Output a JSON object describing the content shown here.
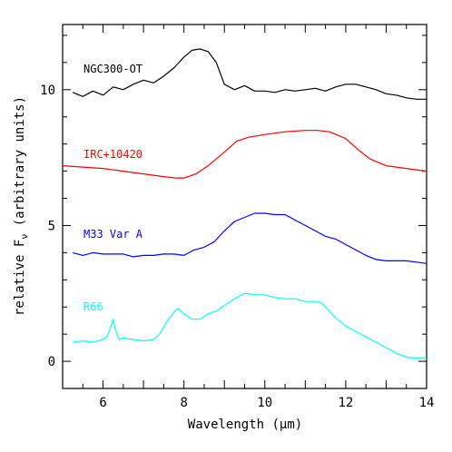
{
  "chart_data": {
    "type": "line",
    "title": "",
    "xlabel": "Wavelength (μm)",
    "ylabel": "relative F",
    "ylabel_sub": "ν",
    "ylabel_suffix": " (arbitrary units)",
    "xlim": [
      5.0,
      14.0
    ],
    "ylim": [
      -1.0,
      12.4
    ],
    "x_ticks": [
      6,
      8,
      10,
      12,
      14
    ],
    "y_ticks": [
      0,
      5,
      10
    ],
    "grid": false,
    "legend": "none",
    "series": [
      {
        "name": "NGC300-OT",
        "color": "#000000",
        "x": [
          5.25,
          5.5,
          5.75,
          6.0,
          6.25,
          6.5,
          6.75,
          7.0,
          7.25,
          7.5,
          7.75,
          8.0,
          8.2,
          8.4,
          8.6,
          8.8,
          9.0,
          9.25,
          9.5,
          9.75,
          10.0,
          10.25,
          10.5,
          10.75,
          11.0,
          11.25,
          11.5,
          11.75,
          12.0,
          12.25,
          12.5,
          12.75,
          13.0,
          13.25,
          13.5,
          13.75,
          14.0
        ],
        "y": [
          9.9,
          9.75,
          9.95,
          9.8,
          10.1,
          10.0,
          10.2,
          10.35,
          10.25,
          10.5,
          10.8,
          11.2,
          11.45,
          11.5,
          11.4,
          11.0,
          10.2,
          10.0,
          10.15,
          9.95,
          9.95,
          9.9,
          10.0,
          9.95,
          10.0,
          10.05,
          9.95,
          10.1,
          10.2,
          10.2,
          10.1,
          10.0,
          9.85,
          9.8,
          9.7,
          9.65,
          9.65
        ]
      },
      {
        "name": "IRC+10420",
        "color": "#ff0000",
        "x": [
          5.0,
          5.5,
          6.0,
          6.5,
          7.0,
          7.5,
          7.8,
          8.0,
          8.3,
          8.6,
          9.0,
          9.3,
          9.6,
          10.0,
          10.5,
          11.0,
          11.3,
          11.6,
          12.0,
          12.3,
          12.6,
          13.0,
          13.5,
          14.0
        ],
        "y": [
          7.2,
          7.15,
          7.1,
          7.0,
          6.9,
          6.8,
          6.75,
          6.75,
          6.9,
          7.2,
          7.7,
          8.1,
          8.25,
          8.35,
          8.45,
          8.5,
          8.5,
          8.45,
          8.2,
          7.8,
          7.45,
          7.2,
          7.1,
          7.0
        ]
      },
      {
        "name": "M33 Var A",
        "color": "#0000ff",
        "x": [
          5.25,
          5.5,
          5.75,
          6.0,
          6.25,
          6.5,
          6.75,
          7.0,
          7.25,
          7.5,
          7.75,
          8.0,
          8.25,
          8.5,
          8.75,
          9.0,
          9.25,
          9.5,
          9.75,
          10.0,
          10.25,
          10.5,
          10.75,
          11.0,
          11.25,
          11.5,
          11.75,
          12.0,
          12.25,
          12.5,
          12.75,
          13.0,
          13.25,
          13.5,
          13.75,
          14.0
        ],
        "y": [
          4.0,
          3.9,
          4.0,
          3.95,
          3.95,
          3.95,
          3.85,
          3.9,
          3.9,
          3.95,
          3.95,
          3.9,
          4.1,
          4.2,
          4.4,
          4.8,
          5.15,
          5.3,
          5.45,
          5.45,
          5.4,
          5.4,
          5.2,
          5.0,
          4.8,
          4.6,
          4.5,
          4.3,
          4.1,
          3.9,
          3.75,
          3.7,
          3.7,
          3.7,
          3.65,
          3.6
        ]
      },
      {
        "name": "R66",
        "color": "#00ffff",
        "x": [
          5.25,
          5.5,
          5.75,
          6.0,
          6.1,
          6.2,
          6.25,
          6.3,
          6.4,
          6.5,
          6.75,
          7.0,
          7.25,
          7.4,
          7.6,
          7.75,
          7.85,
          8.0,
          8.2,
          8.4,
          8.6,
          8.8,
          9.0,
          9.25,
          9.5,
          9.75,
          10.0,
          10.25,
          10.5,
          10.75,
          11.0,
          11.25,
          11.4,
          11.5,
          11.75,
          12.0,
          12.25,
          12.5,
          12.75,
          13.0,
          13.25,
          13.5,
          13.75,
          14.0
        ],
        "y": [
          0.7,
          0.75,
          0.7,
          0.8,
          0.9,
          1.3,
          1.55,
          1.2,
          0.8,
          0.85,
          0.8,
          0.75,
          0.8,
          1.0,
          1.5,
          1.8,
          1.95,
          1.75,
          1.55,
          1.55,
          1.75,
          1.85,
          2.05,
          2.3,
          2.5,
          2.45,
          2.45,
          2.35,
          2.3,
          2.3,
          2.2,
          2.2,
          2.15,
          2.0,
          1.6,
          1.3,
          1.1,
          0.9,
          0.7,
          0.5,
          0.3,
          0.15,
          0.12,
          0.1
        ]
      }
    ]
  }
}
